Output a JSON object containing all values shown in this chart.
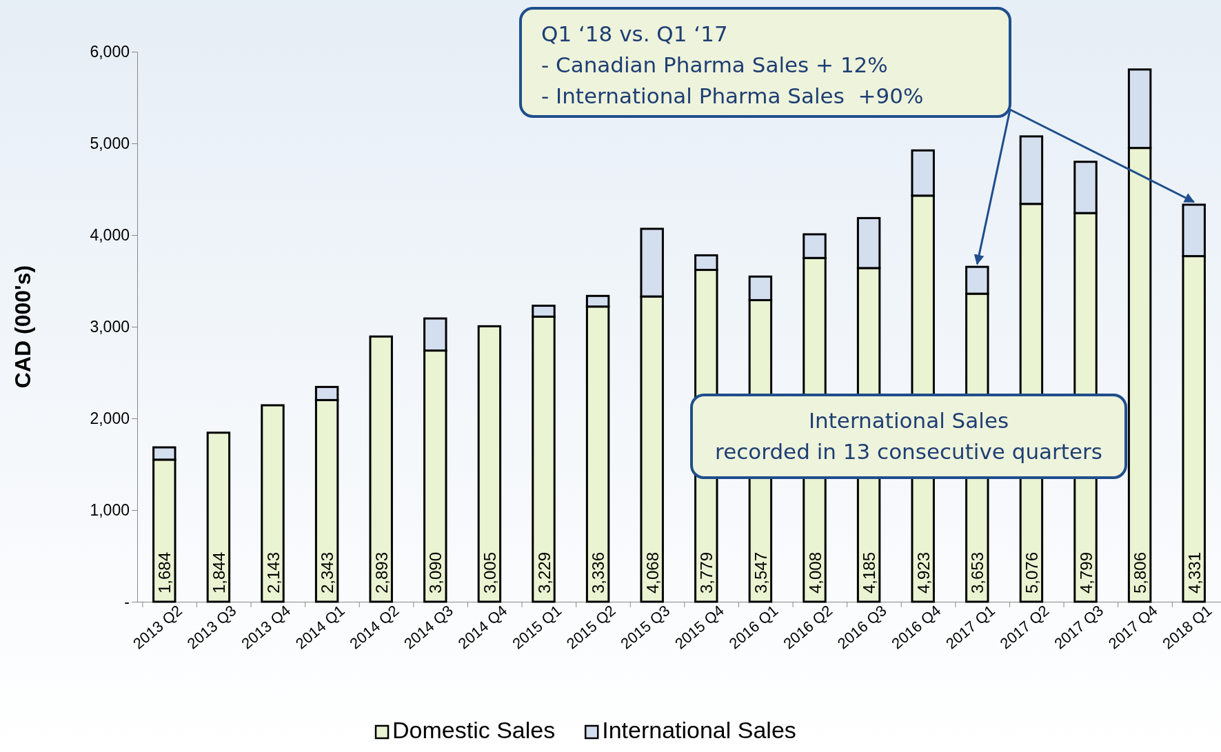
{
  "chart_data": {
    "type": "bar",
    "stacked": true,
    "ylabel": "CAD (000's)",
    "categories": [
      "2013 Q2",
      "2013 Q3",
      "2013 Q4",
      "2014 Q1",
      "2014 Q2",
      "2014 Q3",
      "2014 Q4",
      "2015 Q1",
      "2015 Q2",
      "2015 Q3",
      "2015 Q4",
      "2016 Q1",
      "2016 Q2",
      "2016 Q3",
      "2016 Q4",
      "2017 Q1",
      "2017 Q2",
      "2017 Q3",
      "2017 Q4",
      "2018 Q1"
    ],
    "series": [
      {
        "name": "Domestic Sales",
        "color": "#eaf3d2",
        "values": [
          1550,
          1844,
          2143,
          2200,
          2893,
          2740,
          3005,
          3110,
          3220,
          3330,
          3620,
          3290,
          3750,
          3640,
          4430,
          3360,
          4340,
          4240,
          4950,
          3770
        ]
      },
      {
        "name": "International Sales",
        "color": "#d3deef",
        "values": [
          134,
          0,
          0,
          143,
          0,
          350,
          0,
          119,
          116,
          738,
          159,
          257,
          258,
          545,
          493,
          293,
          736,
          559,
          856,
          561
        ]
      }
    ],
    "totals": [
      "1,684",
      "1,844",
      "2,143",
      "2,343",
      "2,893",
      "3,090",
      "3,005",
      "3,229",
      "3,336",
      "4,068",
      "3,779",
      "3,547",
      "4,008",
      "4,185",
      "4,923",
      "3,653",
      "5,076",
      "4,799",
      "5,806",
      "4,331"
    ],
    "ylim": [
      0,
      6000
    ],
    "yticks": [
      {
        "value": 0,
        "label": "-"
      },
      {
        "value": 1000,
        "label": "1,000"
      },
      {
        "value": 2000,
        "label": "2,000"
      },
      {
        "value": 3000,
        "label": "3,000"
      },
      {
        "value": 4000,
        "label": "4,000"
      },
      {
        "value": 5000,
        "label": "5,000"
      },
      {
        "value": 6000,
        "label": "6,000"
      }
    ],
    "legend": "bottom",
    "annotations": [
      "Q1 ‘18 vs. Q1 ‘17\n- Canadian Pharma Sales + 12%\n- International Pharma Sales  +90%",
      "International Sales\nrecorded in 13 consecutive quarters"
    ]
  }
}
